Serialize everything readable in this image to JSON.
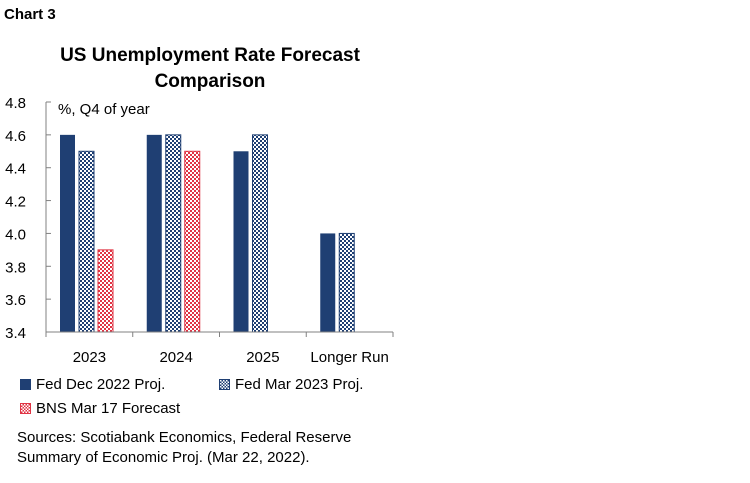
{
  "header": {
    "chart_label": "Chart 3"
  },
  "chart_data": {
    "type": "bar",
    "title_line1": "US Unemployment Rate Forecast",
    "title_line2": "Comparison",
    "unit_label": "%, Q4 of year",
    "categories": [
      "2023",
      "2024",
      "2025",
      "Longer Run"
    ],
    "ylim": [
      3.4,
      4.8
    ],
    "yticks": [
      "3.4",
      "3.6",
      "3.8",
      "4.0",
      "4.2",
      "4.4",
      "4.6",
      "4.8"
    ],
    "series": [
      {
        "name": "Fed Dec 2022 Proj.",
        "values": [
          4.6,
          4.6,
          4.5,
          4.0
        ],
        "color": "#1f3f73",
        "pattern": "solid"
      },
      {
        "name": "Fed Mar 2023 Proj.",
        "values": [
          4.5,
          4.6,
          4.6,
          4.0
        ],
        "color": "#1f3f73",
        "pattern": "checker"
      },
      {
        "name": "BNS Mar 17 Forecast",
        "values": [
          3.9,
          4.5,
          null,
          null
        ],
        "color": "#e03444",
        "pattern": "checker"
      }
    ],
    "grid": false,
    "legend_position": "bottom"
  },
  "footer": {
    "sources_line1": "Sources: Scotiabank Economics, Federal Reserve",
    "sources_line2": "Summary of Economic Proj. (Mar 22, 2022)."
  }
}
